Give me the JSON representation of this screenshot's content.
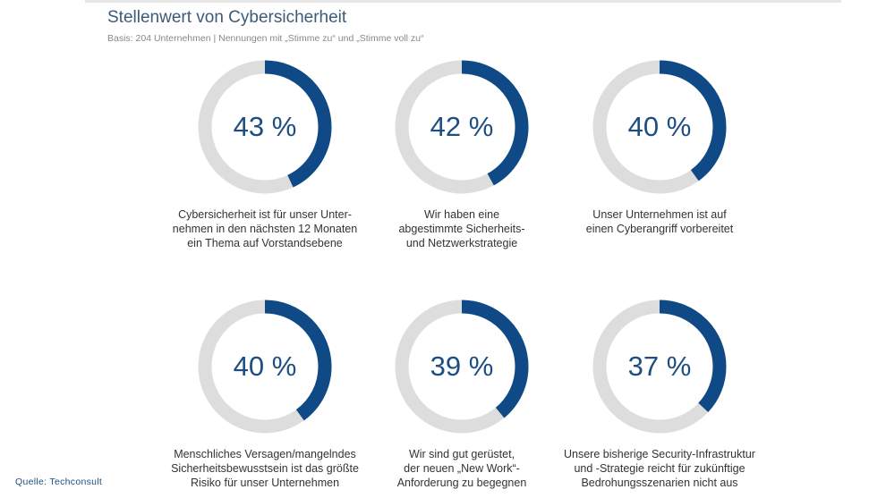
{
  "chart_data": {
    "type": "pie",
    "variant": "donut",
    "title": "Stellenwert von Cybersicherheit",
    "subtitle": "Basis: 204 Unternehmen | Nennungen mit „Stimme zu“ und „Stimme voll zu“",
    "unit": "%",
    "items": [
      {
        "value": 43,
        "display": "43 %",
        "label": [
          "Cybersicherheit ist für unser Unter-",
          "nehmen in den nächsten 12 Monaten",
          "ein Thema auf Vorstandsebene"
        ]
      },
      {
        "value": 42,
        "display": "42 %",
        "label": [
          "Wir haben eine",
          "abgestimmte Sicherheits-",
          "und Netzwerkstrategie"
        ]
      },
      {
        "value": 40,
        "display": "40 %",
        "label": [
          "Unser Unternehmen ist auf",
          "einen Cyberangriff vorbereitet"
        ]
      },
      {
        "value": 40,
        "display": "40 %",
        "label": [
          "Menschliches Versagen/mangelndes",
          "Sicherheitsbewusstsein ist das größte",
          "Risiko für unser Unternehmen"
        ]
      },
      {
        "value": 39,
        "display": "39 %",
        "label": [
          "Wir sind gut gerüstet,",
          "der neuen „New Work“-",
          "Anforderung zu begegnen"
        ]
      },
      {
        "value": 37,
        "display": "37 %",
        "label": [
          "Unsere bisherige Security-Infrastruktur",
          "und -Strategie reicht für zukünftige",
          "Bedrohungsszenarien nicht aus"
        ]
      }
    ],
    "colors": {
      "value": "#0f4a86",
      "track": "#dddddd"
    }
  },
  "source": "Quelle: Techconsult"
}
